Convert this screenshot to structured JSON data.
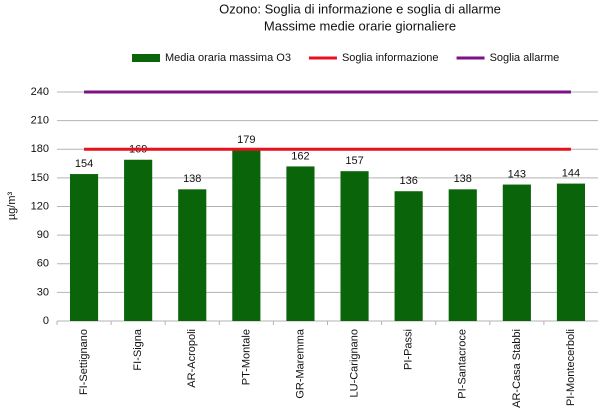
{
  "chart_data": {
    "type": "bar",
    "title": "Ozono: Soglia di informazione e soglia di allarme",
    "subtitle": "Massime medie orarie giornaliere",
    "y_label": "µg/m³",
    "categories": [
      "FI-Settignano",
      "FI-Signa",
      "AR-Acropoli",
      "PT-Montale",
      "GR-Maremma",
      "LU-Carignano",
      "PI-Passi",
      "PI-Santacroce",
      "AR-Casa Stabbi",
      "PI-Montecerboli"
    ],
    "series": [
      {
        "name": "Media oraria massima  O3",
        "type": "bar",
        "color": "#0a640a",
        "values": [
          154,
          169,
          138,
          179,
          162,
          157,
          136,
          138,
          143,
          144
        ]
      },
      {
        "name": "Soglia informazione",
        "type": "line",
        "color": "#e8101e",
        "values": [
          180,
          180,
          180,
          180,
          180,
          180,
          180,
          180,
          180,
          180
        ]
      },
      {
        "name": "Soglia allarme",
        "type": "line",
        "color": "#7b1286",
        "values": [
          240,
          240,
          240,
          240,
          240,
          240,
          240,
          240,
          240,
          240
        ]
      }
    ],
    "ylim": [
      0,
      240
    ],
    "yticks": [
      0,
      30,
      60,
      90,
      120,
      150,
      180,
      210,
      240
    ],
    "grid": true,
    "legend": "top"
  }
}
